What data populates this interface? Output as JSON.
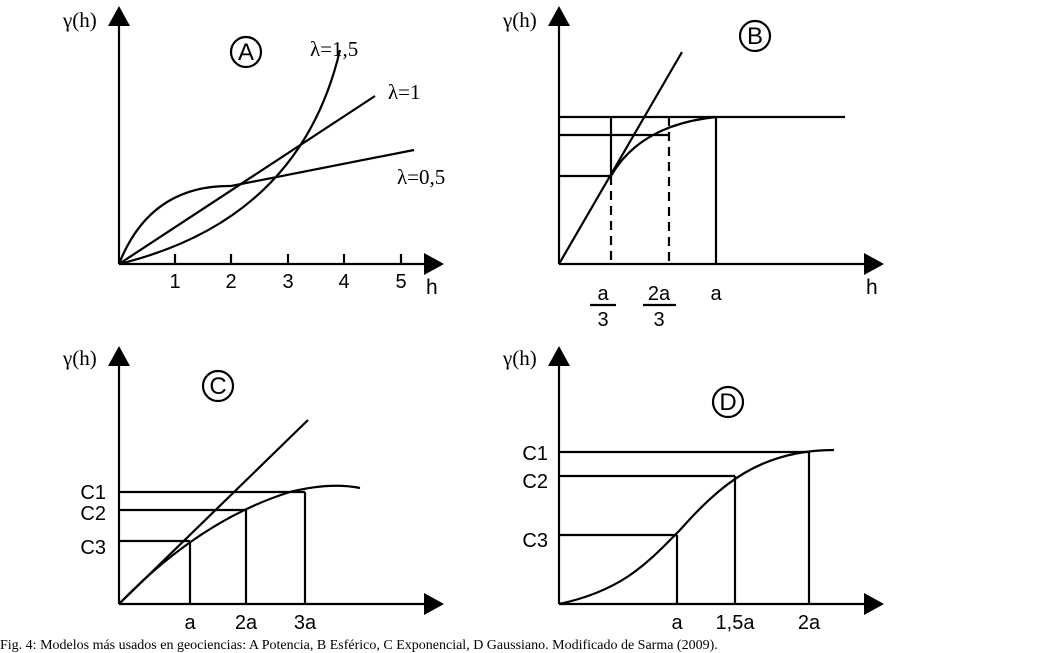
{
  "panels": {
    "A": {
      "badge": "A",
      "y_label": "γ(h)",
      "x_label": "h",
      "x_ticks": [
        "1",
        "2",
        "3",
        "4",
        "5"
      ],
      "curves": [
        {
          "label": "λ=1,5"
        },
        {
          "label": "λ=1"
        },
        {
          "label": "λ=0,5"
        }
      ]
    },
    "B": {
      "badge": "B",
      "y_label": "γ(h)",
      "x_label": "h",
      "x_ticks": [
        {
          "num": "a",
          "den": "3"
        },
        {
          "num": "2a",
          "den": "3"
        },
        {
          "num": "a",
          "den": ""
        }
      ]
    },
    "C": {
      "badge": "C",
      "y_label": "γ(h)",
      "y_ticks": [
        "C1",
        "C2",
        "C3"
      ],
      "x_ticks": [
        "a",
        "2a",
        "3a"
      ]
    },
    "D": {
      "badge": "D",
      "y_label": "γ(h)",
      "y_ticks": [
        "C1",
        "C2",
        "C3"
      ],
      "x_ticks": [
        "a",
        "1,5a",
        "2a"
      ]
    }
  },
  "caption": "Fig. 4: Modelos más usados en geociencias: A Potencia, B Esférico, C Exponencial, D Gaussiano. Modificado de Sarma (2009)."
}
